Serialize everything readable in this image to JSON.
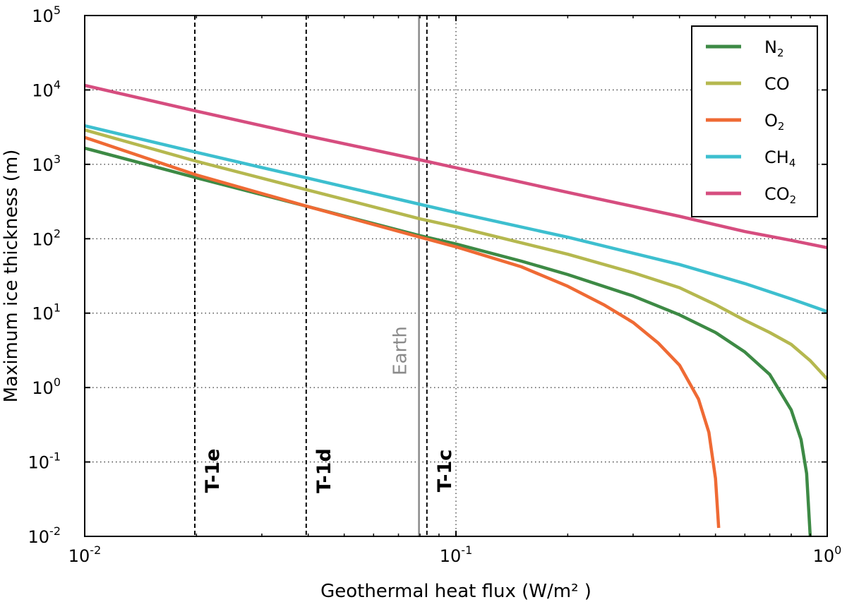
{
  "chart_data": {
    "type": "line",
    "title": "",
    "xlabel": "Geothermal heat flux (W/m² )",
    "ylabel": "Maximum ice thickness (m)",
    "xscale": "log",
    "yscale": "log",
    "xlim": [
      0.01,
      1
    ],
    "ylim": [
      0.01,
      100000
    ],
    "grid": true,
    "legend_position": "top-right",
    "x_ticks": [
      {
        "base": "10",
        "exp": "-2"
      },
      {
        "base": "10",
        "exp": "-1"
      },
      {
        "base": "10",
        "exp": "0"
      }
    ],
    "y_ticks": [
      {
        "base": "10",
        "exp": "-2"
      },
      {
        "base": "10",
        "exp": "-1"
      },
      {
        "base": "10",
        "exp": "0"
      },
      {
        "base": "10",
        "exp": "1"
      },
      {
        "base": "10",
        "exp": "2"
      },
      {
        "base": "10",
        "exp": "3"
      },
      {
        "base": "10",
        "exp": "4"
      },
      {
        "base": "10",
        "exp": "5"
      }
    ],
    "series": [
      {
        "name": "N2",
        "label_main": "N",
        "label_sub": "2",
        "color": "#3d8a45",
        "points": [
          [
            0.01,
            1650
          ],
          [
            0.02,
            660
          ],
          [
            0.04,
            270
          ],
          [
            0.06,
            160
          ],
          [
            0.08,
            110
          ],
          [
            0.1,
            85
          ],
          [
            0.15,
            50
          ],
          [
            0.2,
            33
          ],
          [
            0.3,
            17
          ],
          [
            0.4,
            9.5
          ],
          [
            0.5,
            5.5
          ],
          [
            0.6,
            3
          ],
          [
            0.7,
            1.5
          ],
          [
            0.8,
            0.5
          ],
          [
            0.85,
            0.2
          ],
          [
            0.88,
            0.07
          ],
          [
            0.9,
            0.01
          ]
        ]
      },
      {
        "name": "CO",
        "label_main": "CO",
        "label_sub": "",
        "color": "#b5b84f",
        "points": [
          [
            0.01,
            2900
          ],
          [
            0.02,
            1100
          ],
          [
            0.04,
            450
          ],
          [
            0.08,
            185
          ],
          [
            0.1,
            145
          ],
          [
            0.2,
            62
          ],
          [
            0.3,
            35
          ],
          [
            0.4,
            22
          ],
          [
            0.5,
            13
          ],
          [
            0.6,
            8
          ],
          [
            0.7,
            5.5
          ],
          [
            0.8,
            3.8
          ],
          [
            0.9,
            2.3
          ],
          [
            1.0,
            1.3
          ]
        ]
      },
      {
        "name": "O2",
        "label_main": "O",
        "label_sub": "2",
        "color": "#ef6a34",
        "points": [
          [
            0.01,
            2300
          ],
          [
            0.02,
            720
          ],
          [
            0.04,
            270
          ],
          [
            0.08,
            105
          ],
          [
            0.1,
            78
          ],
          [
            0.15,
            42
          ],
          [
            0.2,
            23
          ],
          [
            0.25,
            13
          ],
          [
            0.3,
            7.5
          ],
          [
            0.35,
            4
          ],
          [
            0.4,
            2
          ],
          [
            0.45,
            0.7
          ],
          [
            0.48,
            0.25
          ],
          [
            0.5,
            0.06
          ],
          [
            0.51,
            0.013
          ]
        ]
      },
      {
        "name": "CH4",
        "label_main": "CH",
        "label_sub": "4",
        "color": "#3dbfcf",
        "points": [
          [
            0.01,
            3300
          ],
          [
            0.02,
            1450
          ],
          [
            0.04,
            650
          ],
          [
            0.08,
            290
          ],
          [
            0.1,
            225
          ],
          [
            0.2,
            105
          ],
          [
            0.4,
            45
          ],
          [
            0.6,
            25
          ],
          [
            0.8,
            15.5
          ],
          [
            1.0,
            10.5
          ]
        ]
      },
      {
        "name": "CO2",
        "label_main": "CO",
        "label_sub": "2",
        "color": "#d64d7f",
        "points": [
          [
            0.01,
            11500
          ],
          [
            0.02,
            5200
          ],
          [
            0.04,
            2400
          ],
          [
            0.08,
            1150
          ],
          [
            0.1,
            900
          ],
          [
            0.2,
            420
          ],
          [
            0.4,
            200
          ],
          [
            0.6,
            125
          ],
          [
            0.8,
            95
          ],
          [
            1.0,
            76
          ]
        ]
      }
    ],
    "vertical_lines": [
      {
        "label": "T-1e",
        "x": 0.0198,
        "style": "dashed",
        "color": "#000000"
      },
      {
        "label": "T-1d",
        "x": 0.0395,
        "style": "dashed",
        "color": "#000000"
      },
      {
        "label": "T-1c",
        "x": 0.0835,
        "style": "dashed",
        "color": "#000000"
      },
      {
        "label": "Earth",
        "x": 0.0795,
        "style": "solid",
        "color": "#8a8a8a"
      }
    ]
  }
}
